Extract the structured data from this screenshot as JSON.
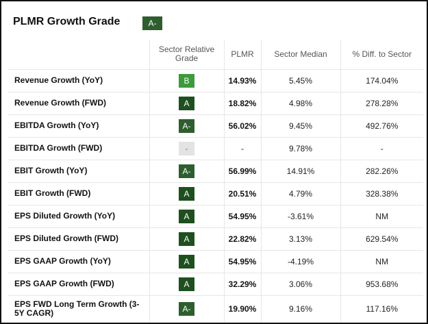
{
  "header": {
    "title": "PLMR Growth Grade",
    "overall_grade": "A-",
    "overall_grade_color": "#2e5e2e"
  },
  "columns": [
    "",
    "Sector Relative Grade",
    "PLMR",
    "Sector Median",
    "% Diff. to Sector"
  ],
  "grade_colors": {
    "A": "#1f4f1f",
    "A-": "#2e5e2e",
    "B": "#3d9a3d",
    "-": "#e3e3e3"
  },
  "rows": [
    {
      "metric": "Revenue Growth (YoY)",
      "grade": "B",
      "plmr": "14.93%",
      "median": "5.45%",
      "diff": "174.04%"
    },
    {
      "metric": "Revenue Growth (FWD)",
      "grade": "A",
      "plmr": "18.82%",
      "median": "4.98%",
      "diff": "278.28%"
    },
    {
      "metric": "EBITDA Growth (YoY)",
      "grade": "A-",
      "plmr": "56.02%",
      "median": "9.45%",
      "diff": "492.76%"
    },
    {
      "metric": "EBITDA Growth (FWD)",
      "grade": "-",
      "plmr": "-",
      "median": "9.78%",
      "diff": "-"
    },
    {
      "metric": "EBIT Growth (YoY)",
      "grade": "A-",
      "plmr": "56.99%",
      "median": "14.91%",
      "diff": "282.26%"
    },
    {
      "metric": "EBIT Growth (FWD)",
      "grade": "A",
      "plmr": "20.51%",
      "median": "4.79%",
      "diff": "328.38%"
    },
    {
      "metric": "EPS Diluted Growth (YoY)",
      "grade": "A",
      "plmr": "54.95%",
      "median": "-3.61%",
      "diff": "NM"
    },
    {
      "metric": "EPS Diluted Growth (FWD)",
      "grade": "A",
      "plmr": "22.82%",
      "median": "3.13%",
      "diff": "629.54%"
    },
    {
      "metric": "EPS GAAP Growth (YoY)",
      "grade": "A",
      "plmr": "54.95%",
      "median": "-4.19%",
      "diff": "NM"
    },
    {
      "metric": "EPS GAAP Growth (FWD)",
      "grade": "A",
      "plmr": "32.29%",
      "median": "3.06%",
      "diff": "953.68%"
    },
    {
      "metric": "EPS FWD Long Term Growth (3-5Y CAGR)",
      "grade": "A-",
      "plmr": "19.90%",
      "median": "9.16%",
      "diff": "117.16%"
    }
  ]
}
